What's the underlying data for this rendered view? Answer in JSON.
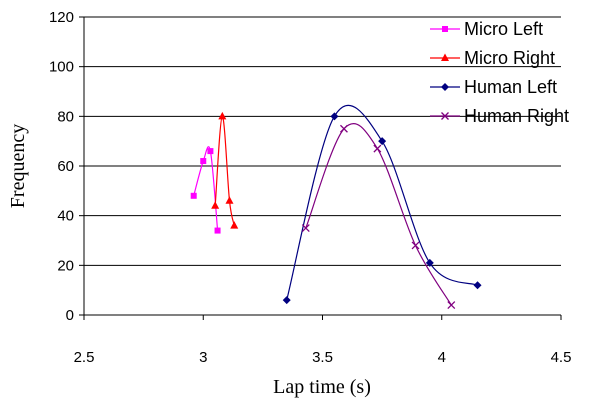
{
  "chart_data": {
    "type": "scatter",
    "title": "",
    "xlabel": "Lap time (s)",
    "ylabel": "Frequency",
    "xlim": [
      2.5,
      4.5
    ],
    "ylim": [
      0,
      120
    ],
    "xticks": [
      2.5,
      3,
      3.5,
      4,
      4.5
    ],
    "yticks": [
      0,
      20,
      40,
      60,
      80,
      100,
      120
    ],
    "xtick_labels": [
      "2.5",
      "3",
      "3.5",
      "4",
      "4.5"
    ],
    "ytick_labels": [
      "0",
      "20",
      "40",
      "60",
      "80",
      "100",
      "120"
    ],
    "grid": "horizontal",
    "legend_position": "right",
    "smooth": true,
    "series": [
      {
        "name": "Micro Left",
        "color": "#ff00ff",
        "marker": "square",
        "x": [
          2.96,
          3.0,
          3.03,
          3.06
        ],
        "y": [
          48,
          62,
          66,
          34
        ]
      },
      {
        "name": "Micro Right",
        "color": "#ff0000",
        "marker": "triangle",
        "x": [
          3.05,
          3.08,
          3.11,
          3.13
        ],
        "y": [
          44,
          80,
          46,
          36
        ]
      },
      {
        "name": "Human Left",
        "color": "#000080",
        "marker": "diamond",
        "x": [
          3.35,
          3.55,
          3.75,
          3.95,
          4.15
        ],
        "y": [
          6,
          80,
          70,
          21,
          12
        ]
      },
      {
        "name": "Human Right",
        "color": "#800080",
        "marker": "x",
        "x": [
          3.43,
          3.59,
          3.73,
          3.89,
          4.04
        ],
        "y": [
          35,
          75,
          67,
          28,
          4
        ]
      }
    ]
  }
}
